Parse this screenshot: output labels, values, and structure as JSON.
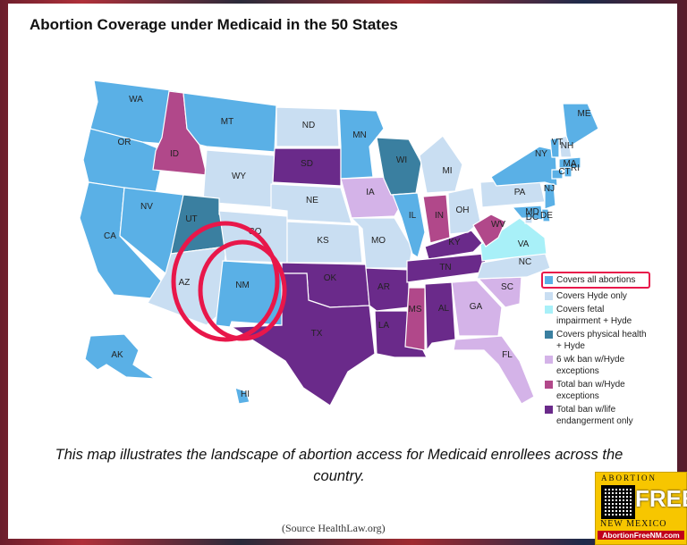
{
  "title": "Abortion Coverage under Medicaid in the 50 States",
  "caption": "This map illustrates the landscape of abortion access for Medicaid enrollees across the country.",
  "source": "(Source HealthLaw.org)",
  "colors": {
    "covers_all": "#5ab0e6",
    "hyde_only": "#c9def2",
    "fetal": "#a8f0f8",
    "physical": "#3a7fa0",
    "six_wk": "#d4b3e8",
    "total_hyde": "#b1488a",
    "total_life": "#6a2a8a",
    "highlight": "#e8174a"
  },
  "legend": [
    {
      "label": "Covers all abortions",
      "color": "#5ab0e6"
    },
    {
      "label": "Covers Hyde only",
      "color": "#c9def2"
    },
    {
      "label": "Covers fetal impairment + Hyde",
      "color": "#a8f0f8"
    },
    {
      "label": "Covers physical health + Hyde",
      "color": "#3a7fa0"
    },
    {
      "label": "6 wk ban w/Hyde exceptions",
      "color": "#d4b3e8"
    },
    {
      "label": "Total ban w/Hyde exceptions",
      "color": "#b1488a"
    },
    {
      "label": "Total ban w/life endangerment only",
      "color": "#6a2a8a"
    }
  ],
  "states": [
    {
      "abbr": "WA",
      "category": "covers_all"
    },
    {
      "abbr": "OR",
      "category": "covers_all"
    },
    {
      "abbr": "CA",
      "category": "covers_all"
    },
    {
      "abbr": "NV",
      "category": "covers_all"
    },
    {
      "abbr": "ID",
      "category": "total_hyde"
    },
    {
      "abbr": "MT",
      "category": "covers_all"
    },
    {
      "abbr": "WY",
      "category": "hyde_only"
    },
    {
      "abbr": "UT",
      "category": "physical"
    },
    {
      "abbr": "AZ",
      "category": "hyde_only"
    },
    {
      "abbr": "CO",
      "category": "hyde_only"
    },
    {
      "abbr": "NM",
      "category": "covers_all"
    },
    {
      "abbr": "ND",
      "category": "hyde_only"
    },
    {
      "abbr": "SD",
      "category": "total_life"
    },
    {
      "abbr": "NE",
      "category": "hyde_only"
    },
    {
      "abbr": "KS",
      "category": "hyde_only"
    },
    {
      "abbr": "OK",
      "category": "total_life"
    },
    {
      "abbr": "TX",
      "category": "total_life"
    },
    {
      "abbr": "MN",
      "category": "covers_all"
    },
    {
      "abbr": "IA",
      "category": "six_wk"
    },
    {
      "abbr": "MO",
      "category": "hyde_only"
    },
    {
      "abbr": "AR",
      "category": "total_life"
    },
    {
      "abbr": "LA",
      "category": "total_life"
    },
    {
      "abbr": "WI",
      "category": "physical"
    },
    {
      "abbr": "IL",
      "category": "covers_all"
    },
    {
      "abbr": "MS",
      "category": "total_hyde"
    },
    {
      "abbr": "MI",
      "category": "hyde_only"
    },
    {
      "abbr": "IN",
      "category": "total_hyde"
    },
    {
      "abbr": "KY",
      "category": "total_life"
    },
    {
      "abbr": "TN",
      "category": "total_life"
    },
    {
      "abbr": "AL",
      "category": "total_life"
    },
    {
      "abbr": "OH",
      "category": "hyde_only"
    },
    {
      "abbr": "GA",
      "category": "six_wk"
    },
    {
      "abbr": "FL",
      "category": "six_wk"
    },
    {
      "abbr": "SC",
      "category": "six_wk"
    },
    {
      "abbr": "NC",
      "category": "hyde_only"
    },
    {
      "abbr": "VA",
      "category": "fetal"
    },
    {
      "abbr": "WV",
      "category": "total_hyde"
    },
    {
      "abbr": "PA",
      "category": "hyde_only"
    },
    {
      "abbr": "NY",
      "category": "covers_all"
    },
    {
      "abbr": "VT",
      "category": "covers_all"
    },
    {
      "abbr": "NH",
      "category": "hyde_only"
    },
    {
      "abbr": "ME",
      "category": "covers_all"
    },
    {
      "abbr": "MA",
      "category": "covers_all"
    },
    {
      "abbr": "CT",
      "category": "covers_all"
    },
    {
      "abbr": "RI",
      "category": "covers_all"
    },
    {
      "abbr": "NJ",
      "category": "covers_all"
    },
    {
      "abbr": "DE",
      "category": "covers_all"
    },
    {
      "abbr": "MD",
      "category": "covers_all"
    },
    {
      "abbr": "DC",
      "category": "hyde_only"
    },
    {
      "abbr": "AK",
      "category": "covers_all"
    },
    {
      "abbr": "HI",
      "category": "covers_all"
    }
  ],
  "badge": {
    "top": "ABORTION",
    "middle": "FREE",
    "bottom": "NEW MEXICO",
    "url": "AbortionFreeNM.com"
  }
}
